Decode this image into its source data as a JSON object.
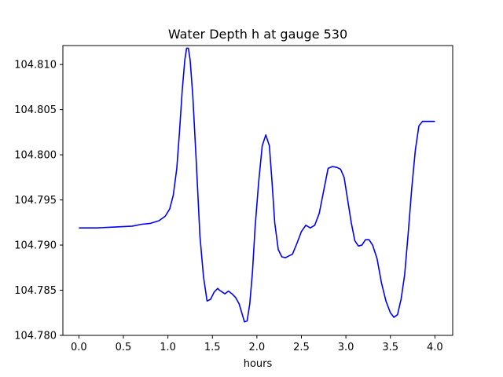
{
  "chart_data": {
    "type": "line",
    "title": "Water Depth h at gauge 530",
    "xlabel": "hours",
    "ylabel": "",
    "xlim": [
      -0.18,
      4.2
    ],
    "ylim": [
      104.78,
      104.8121
    ],
    "xticks": [
      0.0,
      0.5,
      1.0,
      1.5,
      2.0,
      2.5,
      3.0,
      3.5,
      4.0
    ],
    "xtick_labels": [
      "0.0",
      "0.5",
      "1.0",
      "1.5",
      "2.0",
      "2.5",
      "3.0",
      "3.5",
      "4.0"
    ],
    "yticks": [
      104.78,
      104.785,
      104.79,
      104.795,
      104.8,
      104.805,
      104.81
    ],
    "ytick_labels": [
      "104.780",
      "104.785",
      "104.790",
      "104.795",
      "104.800",
      "104.805",
      "104.810"
    ],
    "grid": false,
    "series": [
      {
        "color": "#0000ff",
        "x": [
          0.0,
          0.2,
          0.4,
          0.6,
          0.7,
          0.8,
          0.9,
          0.97,
          1.02,
          1.06,
          1.1,
          1.13,
          1.16,
          1.19,
          1.21,
          1.23,
          1.25,
          1.28,
          1.32,
          1.36,
          1.4,
          1.44,
          1.48,
          1.52,
          1.56,
          1.58,
          1.61,
          1.64,
          1.68,
          1.72,
          1.76,
          1.8,
          1.83,
          1.86,
          1.89,
          1.92,
          1.95,
          1.98,
          2.02,
          2.06,
          2.1,
          2.14,
          2.17,
          2.2,
          2.24,
          2.28,
          2.32,
          2.36,
          2.4,
          2.45,
          2.5,
          2.55,
          2.6,
          2.65,
          2.7,
          2.75,
          2.8,
          2.85,
          2.9,
          2.94,
          2.98,
          3.02,
          3.06,
          3.1,
          3.14,
          3.18,
          3.22,
          3.26,
          3.3,
          3.35,
          3.4,
          3.45,
          3.5,
          3.54,
          3.58,
          3.62,
          3.66,
          3.7,
          3.74,
          3.78,
          3.82,
          3.86,
          3.9,
          3.94,
          3.98,
          4.0
        ],
        "y": [
          104.7919,
          104.7919,
          104.792,
          104.7921,
          104.7923,
          104.7924,
          104.7927,
          104.7932,
          104.794,
          104.7955,
          104.7985,
          104.8025,
          104.807,
          104.8105,
          104.8118,
          104.8118,
          104.8105,
          104.8065,
          104.799,
          104.791,
          104.7865,
          104.7838,
          104.784,
          104.7848,
          104.7852,
          104.785,
          104.7848,
          104.7846,
          104.7849,
          104.7846,
          104.7842,
          104.7835,
          104.7825,
          104.7815,
          104.7816,
          104.7835,
          104.787,
          104.792,
          104.797,
          104.801,
          104.8022,
          104.801,
          104.797,
          104.7925,
          104.7895,
          104.7887,
          104.7886,
          104.7888,
          104.789,
          104.7902,
          104.7915,
          104.7922,
          104.7919,
          104.7922,
          104.7935,
          104.796,
          104.7985,
          104.7987,
          104.7986,
          104.7984,
          104.7975,
          104.795,
          104.7925,
          104.7905,
          104.7899,
          104.79,
          104.7906,
          104.7906,
          104.79,
          104.7885,
          104.7858,
          104.7838,
          104.7825,
          104.782,
          104.7823,
          104.784,
          104.7867,
          104.7913,
          104.7963,
          104.8005,
          104.8032,
          104.8037,
          104.8037,
          104.8037,
          104.8037,
          104.8037
        ]
      }
    ]
  }
}
